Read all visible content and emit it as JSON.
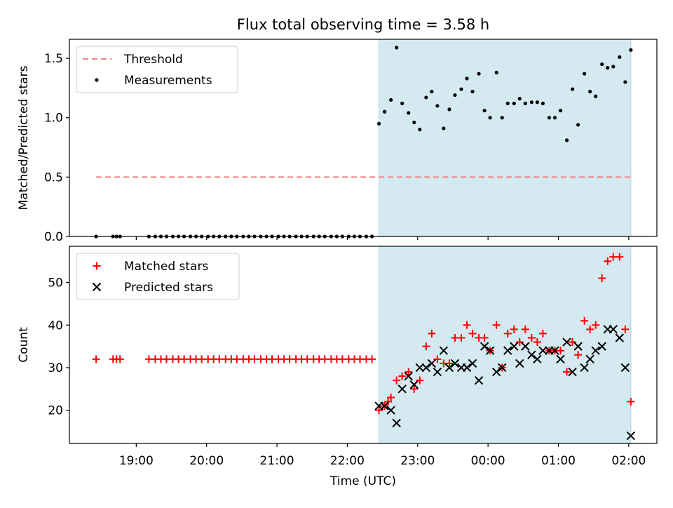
{
  "chart_data": [
    {
      "type": "scatter",
      "title": "Flux total observing time = 3.58 h",
      "xlabel": "",
      "ylabel": "Matched/Predicted stars",
      "x_unit": "hours UTC (continuing past midnight as 24+)",
      "xlim": [
        18.05,
        26.4
      ],
      "ylim": [
        0,
        1.66
      ],
      "yticks": [
        0.0,
        0.5,
        1.0,
        1.5
      ],
      "ytick_labels": [
        "0.0",
        "0.5",
        "1.0",
        "1.5"
      ],
      "observing_window": [
        22.45,
        26.03
      ],
      "threshold": {
        "name": "Threshold",
        "value": 0.5,
        "x_range": [
          18.43,
          26.03
        ],
        "color": "#f08080"
      },
      "legend": {
        "placement": "top-left",
        "entries": [
          "Threshold",
          "Measurements"
        ]
      },
      "series": [
        {
          "name": "Measurements",
          "color": "#000000",
          "points": [
            [
              18.43,
              0
            ],
            [
              18.67,
              0
            ],
            [
              18.72,
              0
            ],
            [
              18.77,
              0
            ],
            [
              19.18,
              0
            ],
            [
              19.27,
              0
            ],
            [
              19.35,
              0
            ],
            [
              19.43,
              0
            ],
            [
              19.52,
              0
            ],
            [
              19.6,
              0
            ],
            [
              19.68,
              0
            ],
            [
              19.77,
              0
            ],
            [
              19.85,
              0
            ],
            [
              19.93,
              0
            ],
            [
              20.02,
              0
            ],
            [
              20.1,
              0
            ],
            [
              20.18,
              0
            ],
            [
              20.27,
              0
            ],
            [
              20.35,
              0
            ],
            [
              20.43,
              0
            ],
            [
              20.52,
              0
            ],
            [
              20.6,
              0
            ],
            [
              20.68,
              0
            ],
            [
              20.77,
              0
            ],
            [
              20.85,
              0
            ],
            [
              20.93,
              0
            ],
            [
              21.02,
              0
            ],
            [
              21.1,
              0
            ],
            [
              21.18,
              0
            ],
            [
              21.27,
              0
            ],
            [
              21.35,
              0
            ],
            [
              21.43,
              0
            ],
            [
              21.52,
              0
            ],
            [
              21.6,
              0
            ],
            [
              21.68,
              0
            ],
            [
              21.77,
              0
            ],
            [
              21.85,
              0
            ],
            [
              21.93,
              0
            ],
            [
              22.02,
              0
            ],
            [
              22.1,
              0
            ],
            [
              22.18,
              0
            ],
            [
              22.27,
              0
            ],
            [
              22.35,
              0
            ],
            [
              22.45,
              0.95
            ],
            [
              22.53,
              1.05
            ],
            [
              22.62,
              1.15
            ],
            [
              22.7,
              1.59
            ],
            [
              22.78,
              1.12
            ],
            [
              22.87,
              1.04
            ],
            [
              22.95,
              0.96
            ],
            [
              23.03,
              0.9
            ],
            [
              23.12,
              1.17
            ],
            [
              23.2,
              1.22
            ],
            [
              23.28,
              1.1
            ],
            [
              23.37,
              0.91
            ],
            [
              23.45,
              1.07
            ],
            [
              23.53,
              1.19
            ],
            [
              23.62,
              1.24
            ],
            [
              23.7,
              1.33
            ],
            [
              23.78,
              1.22
            ],
            [
              23.87,
              1.37
            ],
            [
              23.95,
              1.06
            ],
            [
              24.03,
              1.0
            ],
            [
              24.12,
              1.38
            ],
            [
              24.2,
              1.0
            ],
            [
              24.28,
              1.12
            ],
            [
              24.37,
              1.12
            ],
            [
              24.45,
              1.16
            ],
            [
              24.53,
              1.12
            ],
            [
              24.62,
              1.13
            ],
            [
              24.7,
              1.13
            ],
            [
              24.78,
              1.12
            ],
            [
              24.87,
              1.0
            ],
            [
              24.95,
              1.0
            ],
            [
              25.03,
              1.06
            ],
            [
              25.12,
              0.81
            ],
            [
              25.2,
              1.24
            ],
            [
              25.28,
              0.94
            ],
            [
              25.37,
              1.37
            ],
            [
              25.45,
              1.22
            ],
            [
              25.53,
              1.18
            ],
            [
              25.62,
              1.45
            ],
            [
              25.7,
              1.42
            ],
            [
              25.78,
              1.43
            ],
            [
              25.87,
              1.51
            ],
            [
              25.95,
              1.3
            ],
            [
              26.03,
              1.57
            ]
          ]
        }
      ]
    },
    {
      "type": "scatter",
      "title": "",
      "xlabel": "Time (UTC)",
      "ylabel": "Count",
      "x_unit": "hours UTC (continuing past midnight as 24+)",
      "xlim": [
        18.05,
        26.4
      ],
      "ylim": [
        12.2,
        58.5
      ],
      "yticks": [
        20,
        30,
        40,
        50
      ],
      "ytick_labels": [
        "20",
        "30",
        "40",
        "50"
      ],
      "xticks": [
        19,
        20,
        21,
        22,
        23,
        24,
        25,
        26
      ],
      "xtick_labels": [
        "19:00",
        "20:00",
        "21:00",
        "22:00",
        "23:00",
        "00:00",
        "01:00",
        "02:00"
      ],
      "observing_window": [
        22.45,
        26.03
      ],
      "legend": {
        "placement": "top-left",
        "entries": [
          "Matched stars",
          "Predicted stars"
        ]
      },
      "series": [
        {
          "name": "Matched stars",
          "marker": "plus",
          "color": "#ff0000",
          "points": [
            [
              18.43,
              32
            ],
            [
              18.67,
              32
            ],
            [
              18.72,
              32
            ],
            [
              18.77,
              32
            ],
            [
              19.18,
              32
            ],
            [
              19.27,
              32
            ],
            [
              19.35,
              32
            ],
            [
              19.43,
              32
            ],
            [
              19.52,
              32
            ],
            [
              19.6,
              32
            ],
            [
              19.68,
              32
            ],
            [
              19.77,
              32
            ],
            [
              19.85,
              32
            ],
            [
              19.93,
              32
            ],
            [
              20.02,
              32
            ],
            [
              20.1,
              32
            ],
            [
              20.18,
              32
            ],
            [
              20.27,
              32
            ],
            [
              20.35,
              32
            ],
            [
              20.43,
              32
            ],
            [
              20.52,
              32
            ],
            [
              20.6,
              32
            ],
            [
              20.68,
              32
            ],
            [
              20.77,
              32
            ],
            [
              20.85,
              32
            ],
            [
              20.93,
              32
            ],
            [
              21.02,
              32
            ],
            [
              21.1,
              32
            ],
            [
              21.18,
              32
            ],
            [
              21.27,
              32
            ],
            [
              21.35,
              32
            ],
            [
              21.43,
              32
            ],
            [
              21.52,
              32
            ],
            [
              21.6,
              32
            ],
            [
              21.68,
              32
            ],
            [
              21.77,
              32
            ],
            [
              21.85,
              32
            ],
            [
              21.93,
              32
            ],
            [
              22.02,
              32
            ],
            [
              22.1,
              32
            ],
            [
              22.18,
              32
            ],
            [
              22.27,
              32
            ],
            [
              22.35,
              32
            ],
            [
              22.45,
              20
            ],
            [
              22.53,
              21
            ],
            [
              22.58,
              22
            ],
            [
              22.62,
              23
            ],
            [
              22.7,
              27
            ],
            [
              22.78,
              28
            ],
            [
              22.87,
              29
            ],
            [
              22.95,
              25
            ],
            [
              23.03,
              27
            ],
            [
              23.12,
              35
            ],
            [
              23.2,
              38
            ],
            [
              23.28,
              32
            ],
            [
              23.37,
              31
            ],
            [
              23.45,
              31
            ],
            [
              23.53,
              37
            ],
            [
              23.62,
              37
            ],
            [
              23.7,
              40
            ],
            [
              23.78,
              38
            ],
            [
              23.87,
              37
            ],
            [
              23.95,
              37
            ],
            [
              24.03,
              34
            ],
            [
              24.12,
              40
            ],
            [
              24.2,
              30
            ],
            [
              24.28,
              38
            ],
            [
              24.37,
              39
            ],
            [
              24.45,
              36
            ],
            [
              24.53,
              39
            ],
            [
              24.62,
              37
            ],
            [
              24.7,
              36
            ],
            [
              24.78,
              38
            ],
            [
              24.87,
              34
            ],
            [
              24.95,
              34
            ],
            [
              25.03,
              34
            ],
            [
              25.12,
              29
            ],
            [
              25.2,
              36
            ],
            [
              25.28,
              33
            ],
            [
              25.37,
              41
            ],
            [
              25.45,
              39
            ],
            [
              25.53,
              40
            ],
            [
              25.62,
              51
            ],
            [
              25.7,
              55
            ],
            [
              25.78,
              56
            ],
            [
              25.87,
              56
            ],
            [
              25.95,
              39
            ],
            [
              26.03,
              22
            ]
          ]
        },
        {
          "name": "Predicted stars",
          "marker": "x",
          "color": "#000000",
          "points": [
            [
              22.45,
              21
            ],
            [
              22.53,
              21
            ],
            [
              22.62,
              20
            ],
            [
              22.7,
              17
            ],
            [
              22.78,
              25
            ],
            [
              22.87,
              28
            ],
            [
              22.95,
              26
            ],
            [
              23.03,
              30
            ],
            [
              23.12,
              30
            ],
            [
              23.2,
              31
            ],
            [
              23.28,
              29
            ],
            [
              23.37,
              34
            ],
            [
              23.45,
              30
            ],
            [
              23.53,
              31
            ],
            [
              23.62,
              30
            ],
            [
              23.7,
              30
            ],
            [
              23.78,
              31
            ],
            [
              23.87,
              27
            ],
            [
              23.95,
              35
            ],
            [
              24.03,
              34
            ],
            [
              24.12,
              29
            ],
            [
              24.2,
              30
            ],
            [
              24.28,
              34
            ],
            [
              24.37,
              35
            ],
            [
              24.45,
              31
            ],
            [
              24.53,
              35
            ],
            [
              24.62,
              33
            ],
            [
              24.7,
              32
            ],
            [
              24.78,
              34
            ],
            [
              24.87,
              34
            ],
            [
              24.95,
              34
            ],
            [
              25.03,
              32
            ],
            [
              25.12,
              36
            ],
            [
              25.2,
              29
            ],
            [
              25.28,
              35
            ],
            [
              25.37,
              30
            ],
            [
              25.45,
              32
            ],
            [
              25.53,
              34
            ],
            [
              25.62,
              35
            ],
            [
              25.7,
              39
            ],
            [
              25.78,
              39
            ],
            [
              25.87,
              37
            ],
            [
              25.95,
              30
            ],
            [
              26.03,
              14
            ]
          ]
        }
      ]
    }
  ]
}
